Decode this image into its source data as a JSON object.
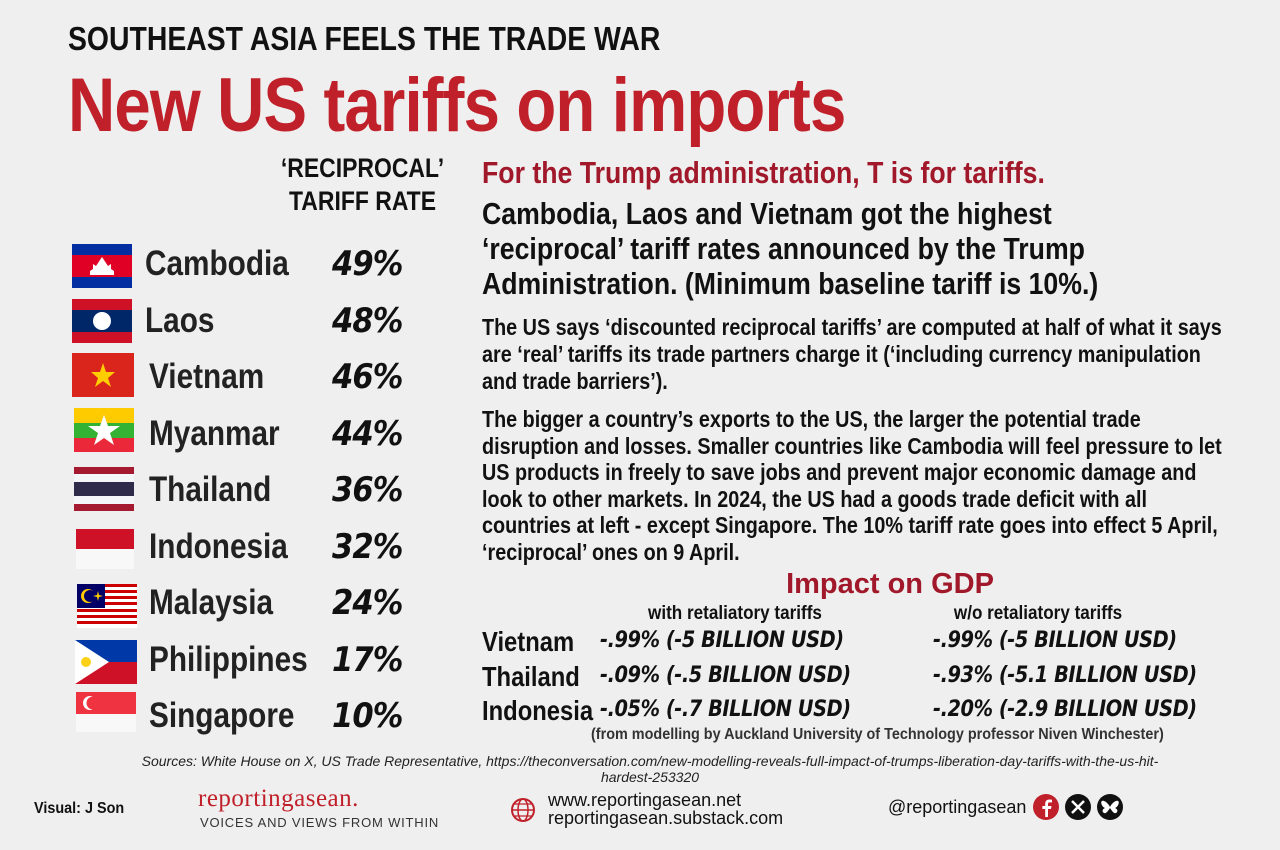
{
  "header": {
    "kicker": "SOUTHEAST ASIA FEELS THE TRADE WAR",
    "title": "New US tariffs on imports"
  },
  "tariffs": {
    "column_header": [
      "‘RECIPROCAL’",
      "TARIFF RATE"
    ],
    "rows": [
      {
        "country": "Cambodia",
        "rate": "49%"
      },
      {
        "country": "Laos",
        "rate": "48%"
      },
      {
        "country": "Vietnam",
        "rate": "46%"
      },
      {
        "country": "Myanmar",
        "rate": "44%"
      },
      {
        "country": "Thailand",
        "rate": "36%"
      },
      {
        "country": "Indonesia",
        "rate": "32%"
      },
      {
        "country": "Malaysia",
        "rate": "24%"
      },
      {
        "country": "Philippines",
        "rate": "17%"
      },
      {
        "country": "Singapore",
        "rate": "10%"
      }
    ]
  },
  "text": {
    "subtitle": "For the Trump administration, T is for tariffs.",
    "lead": "Cambodia, Laos and Vietnam got the highest ‘reciprocal’ tariff rates announced by the Trump Administration. (Minimum baseline tariff is 10%.)",
    "paragraphs": [
      "The US says  ‘discounted reciprocal tariffs’ are computed at half of what it says are ‘real’ tariffs its trade partners charge it (‘including currency manipulation and trade barriers’).",
      "The bigger a country’s exports to the US, the larger the potential trade disruption and losses. Smaller countries like Cambodia will feel pressure to let US products in freely to save jobs and prevent major economic damage and look to other markets. In 2024, the US had a goods trade deficit with all countries at left - except Singapore. The 10% tariff rate goes into effect 5 April, ‘reciprocal’ ones on 9 April."
    ]
  },
  "gdp": {
    "title": "Impact on GDP",
    "columns": [
      "with retaliatory tariffs",
      "w/o retaliatory tariffs"
    ],
    "rows": [
      {
        "country": "Vietnam",
        "with": "-.99% (-5 BILLION USD)",
        "without": "-.99% (-5 BILLION USD)"
      },
      {
        "country": "Thailand",
        "with": "-.09% (-.5 BILLION USD)",
        "without": "-.93% (-5.1 BILLION USD)"
      },
      {
        "country": "Indonesia",
        "with": "-.05% (-.7 BILLION USD)",
        "without": "-.20% (-2.9 BILLION USD)"
      }
    ],
    "note": "(from modelling by Auckland University of Technology professor Niven Winchester)"
  },
  "sources": "Sources: White House on X, US Trade Representative, https://theconversation.com/new-modelling-reveals-full-impact-of-trumps-liberation-day-tariffs-with-the-us-hit-hardest-253320",
  "footer": {
    "credit": "Visual: J Son",
    "logo": "reportingasean.",
    "tagline": "VOICES AND VIEWS FROM WITHIN",
    "websites": [
      "www.reportingasean.net",
      "reportingasean.substack.com"
    ],
    "handle": "@reportingasean"
  }
}
